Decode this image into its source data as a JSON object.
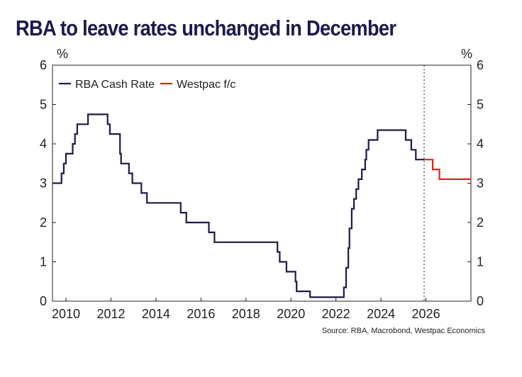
{
  "title": "RBA to leave rates unchanged in December",
  "source": "Source: RBA, Macrobond, Westpac Economics",
  "colors": {
    "title": "#1b1a4a",
    "rba": "#1b1a4a",
    "westpac": "#e3231b"
  },
  "chart_data": {
    "type": "line",
    "title": "RBA to leave rates unchanged in December",
    "ylabel_left": "%",
    "ylabel_right": "%",
    "xlim": [
      2009.4,
      2028.0
    ],
    "ylim": [
      0,
      6
    ],
    "x_ticks": [
      2010,
      2012,
      2014,
      2016,
      2018,
      2020,
      2022,
      2024,
      2026
    ],
    "y_ticks": [
      0,
      1,
      2,
      3,
      4,
      5,
      6
    ],
    "legend": [
      "RBA Cash Rate",
      "Westpac f/c"
    ],
    "forecast_divider_x": 2025.92,
    "series": [
      {
        "name": "RBA Cash Rate",
        "step": true,
        "points": [
          [
            2009.4,
            3.0
          ],
          [
            2009.8,
            3.25
          ],
          [
            2009.9,
            3.5
          ],
          [
            2010.0,
            3.75
          ],
          [
            2010.3,
            4.0
          ],
          [
            2010.4,
            4.25
          ],
          [
            2010.5,
            4.5
          ],
          [
            2010.98,
            4.75
          ],
          [
            2011.85,
            4.5
          ],
          [
            2011.95,
            4.25
          ],
          [
            2012.4,
            3.75
          ],
          [
            2012.45,
            3.5
          ],
          [
            2012.8,
            3.25
          ],
          [
            2012.95,
            3.0
          ],
          [
            2013.35,
            2.75
          ],
          [
            2013.6,
            2.5
          ],
          [
            2015.1,
            2.25
          ],
          [
            2015.35,
            2.0
          ],
          [
            2016.35,
            1.75
          ],
          [
            2016.6,
            1.5
          ],
          [
            2019.4,
            1.25
          ],
          [
            2019.5,
            1.0
          ],
          [
            2019.8,
            0.75
          ],
          [
            2020.2,
            0.5
          ],
          [
            2020.25,
            0.25
          ],
          [
            2020.85,
            0.1
          ],
          [
            2022.35,
            0.35
          ],
          [
            2022.45,
            0.85
          ],
          [
            2022.55,
            1.35
          ],
          [
            2022.6,
            1.85
          ],
          [
            2022.7,
            2.35
          ],
          [
            2022.8,
            2.6
          ],
          [
            2022.9,
            2.85
          ],
          [
            2023.0,
            3.1
          ],
          [
            2023.15,
            3.35
          ],
          [
            2023.3,
            3.6
          ],
          [
            2023.35,
            3.85
          ],
          [
            2023.45,
            4.1
          ],
          [
            2023.85,
            4.35
          ],
          [
            2025.1,
            4.1
          ],
          [
            2025.35,
            3.85
          ],
          [
            2025.55,
            3.6
          ],
          [
            2025.92,
            3.6
          ]
        ]
      },
      {
        "name": "Westpac f/c",
        "step": true,
        "points": [
          [
            2025.92,
            3.6
          ],
          [
            2026.3,
            3.35
          ],
          [
            2026.6,
            3.1
          ],
          [
            2028.0,
            3.1
          ]
        ]
      }
    ]
  }
}
